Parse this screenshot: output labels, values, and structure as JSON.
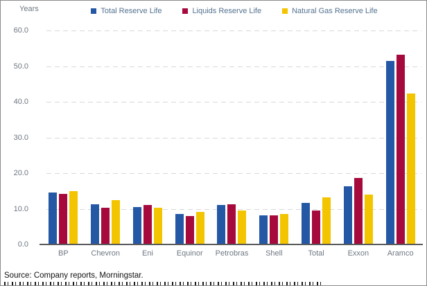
{
  "header": {
    "ylabel": "Years"
  },
  "footer": {
    "source": "Source: Company reports, Morningstar."
  },
  "colors": {
    "total_reserve": "#2458A5",
    "liquids_reserve": "#A60A3D",
    "natural_gas_reserve": "#F2C500",
    "gridline": "#d8d8d8",
    "baseline": "#58595b",
    "axis_text": "#6e7781",
    "legend_text": "#53718f"
  },
  "chart_data": {
    "type": "bar",
    "title": "",
    "xlabel": "",
    "ylabel": "Years",
    "ylim": [
      0,
      60
    ],
    "ytick_step": 10,
    "yticks": [
      "60.0",
      "50.0",
      "40.0",
      "30.0",
      "20.0",
      "10.0",
      "0.0"
    ],
    "grid": "horizontal-dashed",
    "legend_position": "top",
    "categories": [
      "BP",
      "Chevron",
      "Eni",
      "Equinor",
      "Petrobras",
      "Shell",
      "Total",
      "Exxon",
      "Aramco"
    ],
    "series": [
      {
        "name": "Total Reserve Life",
        "color": "#2458A5",
        "values": [
          14.5,
          11.3,
          10.5,
          8.5,
          11.0,
          8.2,
          11.7,
          16.4,
          51.5
        ]
      },
      {
        "name": "Liquids Reserve Life",
        "color": "#A60A3D",
        "values": [
          14.2,
          10.2,
          11.0,
          8.0,
          11.3,
          8.2,
          9.5,
          18.6,
          53.3
        ]
      },
      {
        "name": "Natural Gas Reserve Life",
        "color": "#F2C500",
        "values": [
          14.9,
          12.5,
          10.3,
          9.1,
          9.6,
          8.5,
          13.2,
          13.9,
          42.3
        ]
      }
    ]
  }
}
